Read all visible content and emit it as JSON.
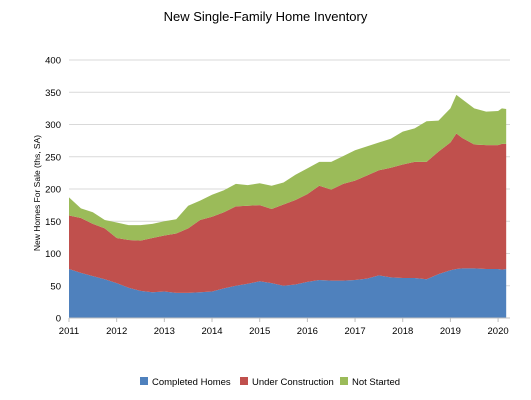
{
  "chart_data": {
    "type": "area",
    "stacked": true,
    "title": "New Single-Family Home Inventory",
    "xlabel": "",
    "ylabel": "New Homes For Sale (ths, SA)",
    "ylim": [
      0,
      400
    ],
    "yticks": [
      0,
      50,
      100,
      150,
      200,
      250,
      300,
      350,
      400
    ],
    "xlim": [
      2011.0,
      2020.25
    ],
    "xticks": [
      2011,
      2012,
      2013,
      2014,
      2015,
      2016,
      2017,
      2018,
      2019,
      2020
    ],
    "grid": true,
    "legend_position": "bottom",
    "x": [
      2011.0,
      2011.25,
      2011.5,
      2011.75,
      2012.0,
      2012.25,
      2012.5,
      2012.75,
      2013.0,
      2013.25,
      2013.5,
      2013.75,
      2014.0,
      2014.25,
      2014.5,
      2014.75,
      2015.0,
      2015.25,
      2015.5,
      2015.75,
      2016.0,
      2016.25,
      2016.5,
      2016.75,
      2017.0,
      2017.25,
      2017.5,
      2017.75,
      2018.0,
      2018.25,
      2018.5,
      2018.75,
      2019.0,
      2019.125,
      2019.25,
      2019.5,
      2019.75,
      2020.0,
      2020.08,
      2020.17
    ],
    "series": [
      {
        "name": "Completed Homes",
        "color": "#4f81bd",
        "values": [
          76,
          70,
          65,
          60,
          54,
          47,
          42,
          40,
          41,
          39,
          39,
          40,
          41,
          46,
          50,
          53,
          57,
          54,
          50,
          52,
          56,
          59,
          58,
          58,
          59,
          61,
          66,
          63,
          62,
          62,
          60,
          68,
          74,
          76,
          77,
          77,
          76,
          76,
          75,
          76
        ]
      },
      {
        "name": "Under Construction",
        "color": "#c0504d",
        "values": [
          83,
          85,
          81,
          79,
          70,
          74,
          78,
          84,
          87,
          92,
          100,
          112,
          116,
          118,
          123,
          121,
          118,
          115,
          126,
          131,
          136,
          146,
          141,
          150,
          154,
          160,
          163,
          170,
          176,
          180,
          182,
          190,
          198,
          210,
          202,
          192,
          192,
          192,
          195,
          194
        ]
      },
      {
        "name": "Not Started",
        "color": "#9bbb59",
        "values": [
          28,
          15,
          18,
          13,
          24,
          23,
          24,
          22,
          22,
          22,
          35,
          30,
          34,
          34,
          35,
          32,
          34,
          36,
          34,
          39,
          40,
          37,
          43,
          43,
          47,
          45,
          43,
          45,
          51,
          52,
          63,
          48,
          53,
          60,
          60,
          56,
          52,
          53,
          55,
          54
        ]
      }
    ]
  }
}
